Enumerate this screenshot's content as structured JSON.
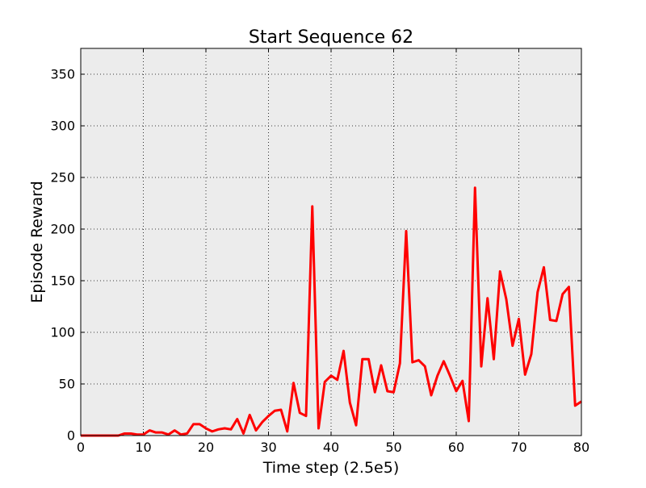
{
  "chart_data": {
    "type": "line",
    "title": "Start Sequence 62",
    "xlabel": "Time step (2.5e5)",
    "ylabel": "Episode Reward",
    "xlim": [
      0,
      80
    ],
    "ylim": [
      0,
      375
    ],
    "xticks": [
      0,
      10,
      20,
      30,
      40,
      50,
      60,
      70,
      80
    ],
    "yticks": [
      0,
      50,
      100,
      150,
      200,
      250,
      300,
      350
    ],
    "grid": true,
    "background_color": "#ececec",
    "line_color": "#ff0000",
    "series": [
      {
        "x": [
          0,
          1,
          2,
          3,
          4,
          5,
          6,
          7,
          8,
          9,
          10,
          11,
          12,
          13,
          14,
          15,
          16,
          17,
          18,
          19,
          20,
          21,
          22,
          23,
          24,
          25,
          26,
          27,
          28,
          29,
          30,
          31,
          32,
          33,
          34,
          35,
          36,
          37,
          38,
          39,
          40,
          41,
          42,
          43,
          44,
          45,
          46,
          47,
          48,
          49,
          50,
          51,
          52,
          53,
          54,
          55,
          56,
          57,
          58,
          59,
          60,
          61,
          62,
          63,
          64,
          65,
          66,
          67,
          68,
          69,
          70,
          71,
          72,
          73,
          74,
          75,
          76,
          77,
          78,
          79,
          80
        ],
        "values": [
          0,
          0,
          0,
          0,
          0,
          0,
          0,
          2,
          2,
          1,
          1,
          5,
          3,
          3,
          1,
          5,
          1,
          2,
          11,
          11,
          7,
          4,
          6,
          7,
          6,
          16,
          2,
          20,
          5,
          13,
          19,
          24,
          25,
          4,
          51,
          22,
          19,
          222,
          7,
          52,
          58,
          54,
          82,
          32,
          10,
          74,
          74,
          42,
          68,
          43,
          42,
          70,
          198,
          71,
          73,
          67,
          39,
          58,
          72,
          58,
          43,
          53,
          14,
          240,
          67,
          133,
          74,
          159,
          132,
          87,
          113,
          59,
          79,
          139,
          163,
          112,
          111,
          137,
          144,
          29,
          33
        ]
      }
    ]
  }
}
